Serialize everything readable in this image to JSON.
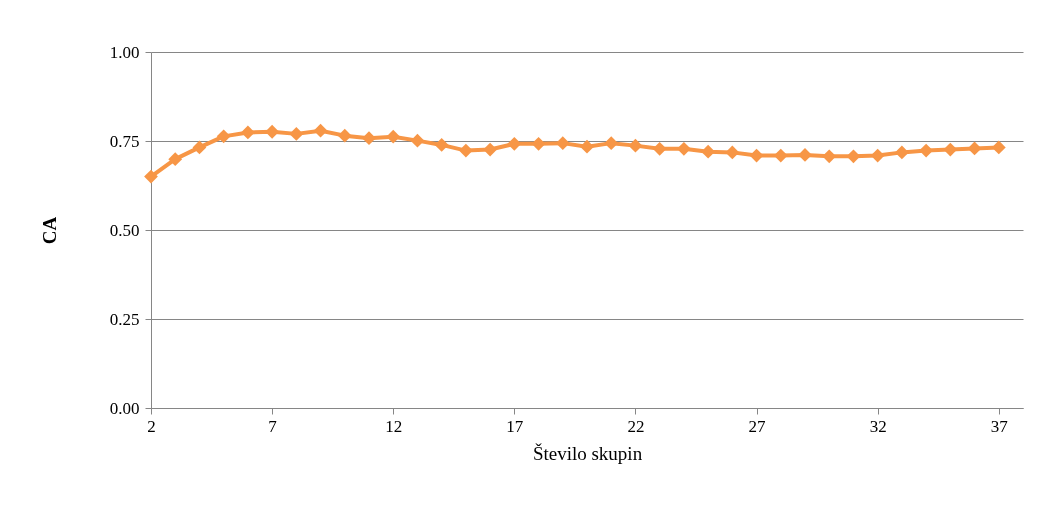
{
  "chart_data": {
    "type": "line",
    "xlabel": "Število skupin",
    "ylabel": "CA",
    "x": [
      2,
      3,
      4,
      5,
      6,
      7,
      8,
      9,
      10,
      11,
      12,
      13,
      14,
      15,
      16,
      17,
      18,
      19,
      20,
      21,
      22,
      23,
      24,
      25,
      26,
      27,
      28,
      29,
      30,
      31,
      32,
      33,
      34,
      35,
      36,
      37
    ],
    "series": [
      {
        "color": "#f79646",
        "values": [
          0.65,
          0.699,
          0.732,
          0.763,
          0.774,
          0.776,
          0.77,
          0.779,
          0.765,
          0.758,
          0.762,
          0.751,
          0.739,
          0.723,
          0.726,
          0.742,
          0.742,
          0.744,
          0.734,
          0.744,
          0.737,
          0.728,
          0.728,
          0.72,
          0.718,
          0.709,
          0.709,
          0.711,
          0.707,
          0.707,
          0.709,
          0.718,
          0.723,
          0.726,
          0.729,
          0.732
        ]
      }
    ],
    "xlim": [
      2,
      38
    ],
    "xticks": [
      2,
      7,
      12,
      17,
      22,
      27,
      32,
      37
    ],
    "ylim": [
      0,
      1
    ],
    "yticks": [
      {
        "value": 0,
        "label": "0.00"
      },
      {
        "value": 0.25,
        "label": "0.25"
      },
      {
        "value": 0.5,
        "label": "0.50"
      },
      {
        "value": 0.75,
        "label": "0.75"
      },
      {
        "value": 1,
        "label": "1.00"
      }
    ],
    "grid": "y",
    "marker": "diamond",
    "line_style": "solid"
  }
}
